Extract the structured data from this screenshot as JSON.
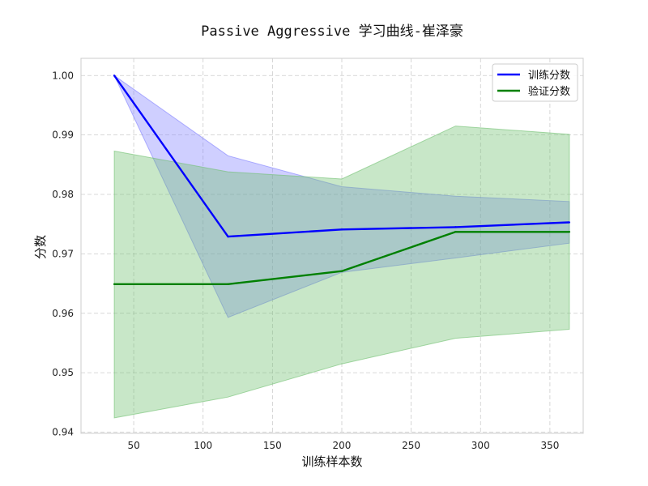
{
  "chart_data": {
    "type": "line",
    "title": "Passive Aggressive 学习曲线-崔泽豪",
    "xlabel": "训练样本数",
    "ylabel": "分数",
    "xlim": [
      12,
      374
    ],
    "ylim": [
      0.9398,
      1.0029
    ],
    "xticks": [
      50,
      100,
      150,
      200,
      250,
      300,
      350
    ],
    "yticks": [
      0.94,
      0.95,
      0.96,
      0.97,
      0.98,
      0.99,
      1.0
    ],
    "ytick_labels": [
      "0.94",
      "0.95",
      "0.96",
      "0.97",
      "0.98",
      "0.99",
      "1.00"
    ],
    "grid": true,
    "legend_position": "top-right",
    "x": [
      36,
      118,
      200,
      282,
      364
    ],
    "series": [
      {
        "name": "训练分数",
        "color": "#0000ff",
        "band_color": "#8080ff",
        "values": [
          1.0,
          0.9729,
          0.9741,
          0.9745,
          0.9753
        ],
        "band_upper": [
          1.0,
          0.9865,
          0.9813,
          0.9797,
          0.9788
        ],
        "band_lower": [
          1.0,
          0.9593,
          0.9669,
          0.9693,
          0.9718
        ]
      },
      {
        "name": "验证分数",
        "color": "#008000",
        "band_color": "#6fbf6f",
        "values": [
          0.9649,
          0.9649,
          0.9671,
          0.9737,
          0.9737
        ],
        "band_upper": [
          0.9873,
          0.9838,
          0.9826,
          0.9915,
          0.9901
        ],
        "band_lower": [
          0.9424,
          0.9459,
          0.9515,
          0.9558,
          0.9573
        ]
      }
    ]
  }
}
